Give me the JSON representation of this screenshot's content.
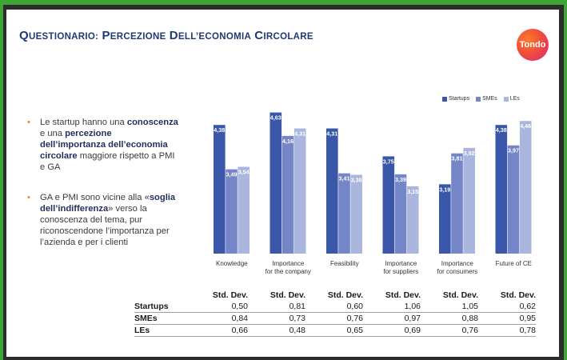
{
  "slide": {
    "title": "Questionario: percezione dell’economia circolare",
    "logo_text": "Tondo"
  },
  "bullets": [
    {
      "parts": [
        {
          "t": "Le startup hanno una ",
          "b": false
        },
        {
          "t": "conoscenza",
          "b": true
        },
        {
          "t": " e una ",
          "b": false
        },
        {
          "t": "percezione dell’importanza dell’economia circolare",
          "b": true
        },
        {
          "t": " maggiore rispetto a PMI e GA",
          "b": false
        }
      ]
    },
    {
      "parts": [
        {
          "t": "GA e PMI sono vicine alla «",
          "b": false
        },
        {
          "t": "soglia dell’indifferenza",
          "b": true
        },
        {
          "t": "» verso la conoscenza del tema, pur riconoscendone l’importanza per l’azienda e per i clienti",
          "b": false
        }
      ]
    }
  ],
  "colors": {
    "startups": "#3a56a8",
    "smes": "#7486c7",
    "les": "#aab6de",
    "accent_title": "#1f3a73",
    "bullet": "#f07b3a"
  },
  "chart_data": {
    "type": "bar",
    "categories": [
      "Knowledge",
      "Importance for the company",
      "Feasibility",
      "Importance for suppliers",
      "Importance for consumers",
      "Future of CE"
    ],
    "series": [
      {
        "name": "Startups",
        "values": [
          4.38,
          4.63,
          4.31,
          3.75,
          3.19,
          4.38
        ]
      },
      {
        "name": "SMEs",
        "values": [
          3.49,
          4.16,
          3.41,
          3.39,
          3.81,
          3.97
        ]
      },
      {
        "name": "LEs",
        "values": [
          3.54,
          4.31,
          3.38,
          3.15,
          3.92,
          4.46
        ]
      }
    ],
    "value_labels": [
      [
        "4,38",
        "4,63",
        "4,31",
        "3,75",
        "3,19",
        "4,38"
      ],
      [
        "3,49",
        "4,16",
        "3,41",
        "3,39",
        "3,81",
        "3,97"
      ],
      [
        "3,54",
        "4,31",
        "3,38",
        "3,15",
        "3,92",
        "4,46"
      ]
    ],
    "ylim": [
      1.8,
      4.8
    ],
    "grid": false,
    "legend": "top-right"
  },
  "std_dev": {
    "header": "Std. Dev.",
    "rows": [
      {
        "label": "Startups",
        "values": [
          "0,50",
          "0,81",
          "0,60",
          "1,06",
          "1,05",
          "0,62"
        ]
      },
      {
        "label": "SMEs",
        "values": [
          "0,84",
          "0,73",
          "0,76",
          "0,97",
          "0,88",
          "0,95"
        ]
      },
      {
        "label": "LEs",
        "values": [
          "0,66",
          "0,48",
          "0,65",
          "0,69",
          "0,76",
          "0,78"
        ]
      }
    ]
  }
}
